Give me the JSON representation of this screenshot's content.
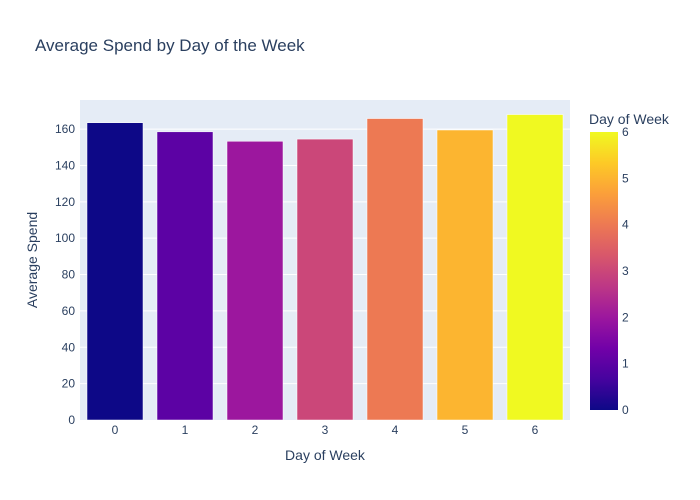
{
  "chart_data": {
    "type": "bar",
    "title": "Average Spend by Day of the Week",
    "xlabel": "Day of Week",
    "ylabel": "Average Spend",
    "categories": [
      "0",
      "1",
      "2",
      "3",
      "4",
      "5",
      "6"
    ],
    "values": [
      163.5,
      158.5,
      153.3,
      154.5,
      165.8,
      159.5,
      168.0
    ],
    "ylim": [
      0,
      176
    ],
    "yticks": [
      0,
      20,
      40,
      60,
      80,
      100,
      120,
      140,
      160
    ],
    "grid": true,
    "plot_bgcolor": "#e5ecf6",
    "colorbar": {
      "title": "Day of Week",
      "range": [
        0,
        6
      ],
      "ticks": [
        "0",
        "1",
        "2",
        "3",
        "4",
        "5",
        "6"
      ],
      "colors": [
        "#0d0887",
        "#46039f",
        "#7201a8",
        "#9c179e",
        "#bd3786",
        "#d8576b",
        "#ed7953",
        "#fb9f3a",
        "#fdca26",
        "#f0f921"
      ]
    }
  }
}
